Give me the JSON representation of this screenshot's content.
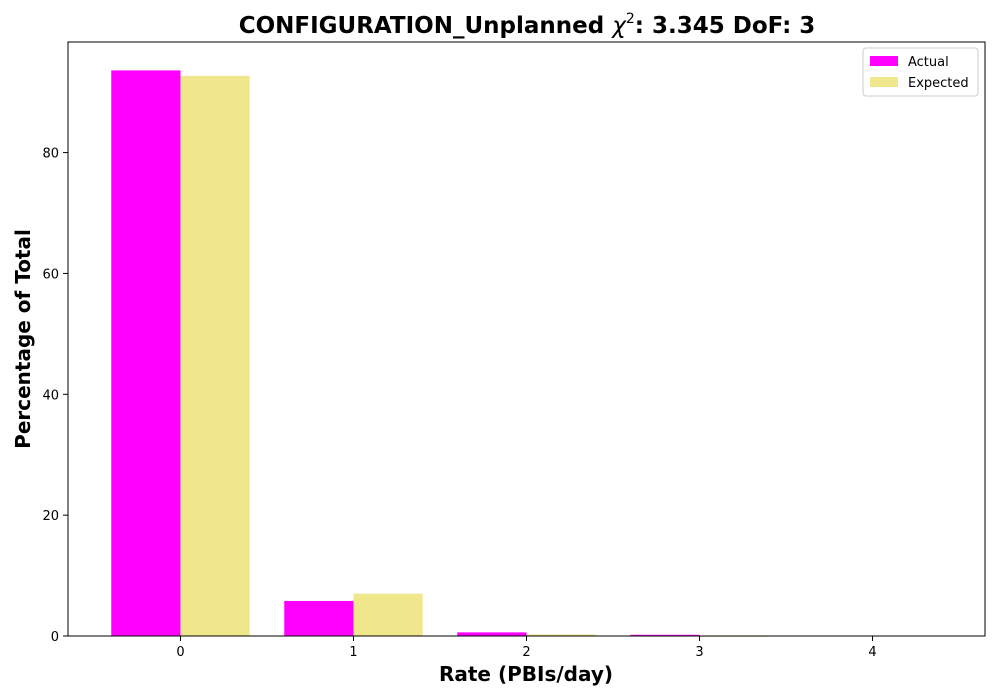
{
  "chart_data": {
    "type": "bar",
    "title": "CONFIGURATION_Unplanned",
    "title_chi": "χ",
    "title_sup": "2",
    "title_stats": ": 3.345 DoF: 3",
    "xlabel": "Rate (PBIs/day)",
    "ylabel": "Percentage of Total",
    "categories": [
      "0",
      "1",
      "2",
      "3",
      "4"
    ],
    "x": [
      0,
      1,
      2,
      3,
      4
    ],
    "series": [
      {
        "name": "Actual",
        "color": "#ff00ff",
        "values": [
          93.6,
          5.8,
          0.6,
          0.2,
          0.0
        ]
      },
      {
        "name": "Expected",
        "color": "#f0e68c",
        "values": [
          92.7,
          7.0,
          0.27,
          0.01,
          0.0
        ]
      }
    ],
    "yticks": [
      0,
      20,
      40,
      60,
      80
    ],
    "ylim": [
      0,
      98.3
    ],
    "xlim": [
      -0.65,
      4.65
    ],
    "grid": false,
    "legend_position": "top-right"
  }
}
